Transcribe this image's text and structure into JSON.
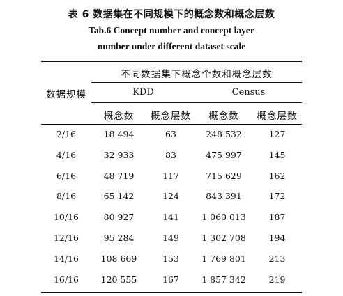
{
  "caption": {
    "zh": "表 6    数据集在不同规模下的概念数和概念层数",
    "en_line1": "Tab.6    Concept number and concept layer",
    "en_line2": "number under different dataset scale"
  },
  "table": {
    "row_header": "数据规模",
    "group_header": "不同数据集下概念个数和概念层数",
    "datasets": [
      "KDD",
      "Census"
    ],
    "sub_headers": [
      "概念数",
      "概念层数",
      "概念数",
      "概念层数"
    ],
    "rows": [
      {
        "scale": "2/16",
        "kdd_concepts": "18 494",
        "kdd_layers": "63",
        "census_concepts": "248 532",
        "census_layers": "127"
      },
      {
        "scale": "4/16",
        "kdd_concepts": "32 933",
        "kdd_layers": "83",
        "census_concepts": "475 997",
        "census_layers": "145"
      },
      {
        "scale": "6/16",
        "kdd_concepts": "48 719",
        "kdd_layers": "117",
        "census_concepts": "715 629",
        "census_layers": "162"
      },
      {
        "scale": "8/16",
        "kdd_concepts": "65 142",
        "kdd_layers": "124",
        "census_concepts": "843 391",
        "census_layers": "172"
      },
      {
        "scale": "10/16",
        "kdd_concepts": "80 927",
        "kdd_layers": "141",
        "census_concepts": "1 060 013",
        "census_layers": "187"
      },
      {
        "scale": "12/16",
        "kdd_concepts": "95 284",
        "kdd_layers": "149",
        "census_concepts": "1 302 708",
        "census_layers": "194"
      },
      {
        "scale": "14/16",
        "kdd_concepts": "108 669",
        "kdd_layers": "153",
        "census_concepts": "1 769 801",
        "census_layers": "213"
      },
      {
        "scale": "16/16",
        "kdd_concepts": "120 555",
        "kdd_layers": "167",
        "census_concepts": "1 857 342",
        "census_layers": "219"
      }
    ]
  }
}
